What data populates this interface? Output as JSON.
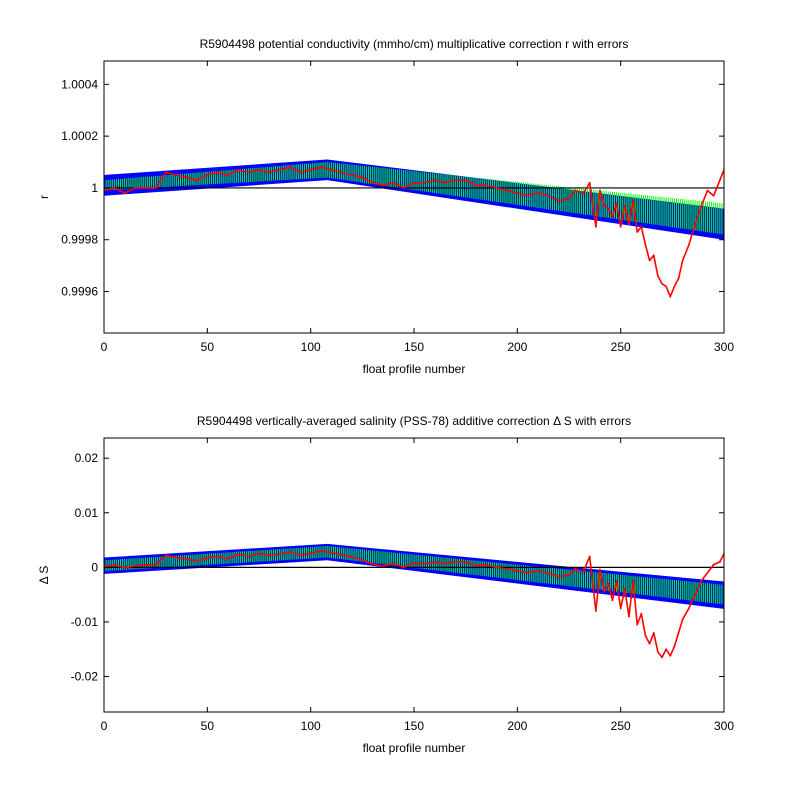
{
  "chart_data": [
    {
      "type": "area",
      "title": "R5904498 potential conductivity (mmho/cm) multiplicative correction r with errors",
      "xlabel": "float profile number",
      "ylabel": "r",
      "xlim": [
        0,
        300
      ],
      "ylim": [
        0.99944,
        1.00049
      ],
      "x_ticks": [
        0,
        50,
        100,
        150,
        200,
        250,
        300
      ],
      "x_tick_labels": [
        "0",
        "50",
        "100",
        "150",
        "200",
        "250",
        "300"
      ],
      "y_ticks": [
        0.9996,
        0.9998,
        1,
        1.0002,
        1.0004
      ],
      "y_tick_labels": [
        "0.9996",
        "0.9998",
        "1",
        "1.0002",
        "1.0004"
      ],
      "grid": false,
      "reference_line": 1,
      "colors": {
        "outer_band": "#0000ff",
        "inner_band": "#00ff00",
        "series": "#ff0000",
        "reference": "#000000"
      },
      "bands": {
        "x": [
          0,
          108,
          300
        ],
        "outer_upper": [
          1.00005,
          1.00011,
          0.99992
        ],
        "outer_lower": [
          0.99997,
          1.00003,
          0.9998
        ],
        "inner_upper": [
          1.00003,
          1.0001,
          0.99994
        ],
        "inner_lower": [
          0.99999,
          1.00004,
          0.99982
        ]
      },
      "series": [
        {
          "x": [
            0,
            5,
            10,
            15,
            20,
            25,
            30,
            35,
            40,
            45,
            50,
            55,
            60,
            65,
            70,
            75,
            80,
            85,
            90,
            95,
            100,
            105,
            110,
            115,
            120,
            125,
            130,
            135,
            140,
            145,
            150,
            155,
            160,
            165,
            170,
            175,
            180,
            185,
            190,
            195,
            200,
            205,
            210,
            215,
            220,
            225,
            228,
            232,
            235,
            238,
            240,
            242,
            244,
            246,
            248,
            250,
            252,
            254,
            256,
            258,
            260,
            262,
            264,
            266,
            268,
            270,
            272,
            274,
            276,
            278,
            280,
            283,
            286,
            289,
            292,
            295,
            298,
            300
          ],
          "values": [
            0.99999,
            1.0,
            0.99998,
            1.0,
            1.0,
            1.0,
            1.00006,
            1.00005,
            1.00004,
            1.00003,
            1.00005,
            1.00006,
            1.00005,
            1.00007,
            1.00006,
            1.00007,
            1.00006,
            1.00007,
            1.00008,
            1.00006,
            1.00007,
            1.00008,
            1.00007,
            1.00006,
            1.00005,
            1.00004,
            1.00002,
            1.00001,
            1.00002,
            1.0,
            1.00002,
            1.00002,
            1.00003,
            1.00002,
            1.00003,
            1.00003,
            1.00001,
            1.00001,
            1.0,
            0.99999,
            0.99998,
            0.99997,
            0.99998,
            0.99997,
            0.99995,
            0.99996,
            0.99999,
            0.99998,
            1.00002,
            0.99985,
            0.99999,
            0.99993,
            0.99992,
            0.99989,
            0.99994,
            0.99985,
            0.99993,
            0.99986,
            0.99995,
            0.99983,
            0.99985,
            0.99978,
            0.99972,
            0.99974,
            0.99966,
            0.99963,
            0.99962,
            0.99958,
            0.99962,
            0.99965,
            0.99972,
            0.99978,
            0.99986,
            0.99993,
            0.99999,
            0.99997,
            1.00003,
            1.00007
          ]
        }
      ]
    },
    {
      "type": "area",
      "title": "R5904498 vertically-averaged salinity (PSS-78) additive correction Δ S with errors",
      "xlabel": "float profile number",
      "ylabel": "Δ S",
      "xlim": [
        0,
        300
      ],
      "ylim": [
        -0.0265,
        0.0237
      ],
      "x_ticks": [
        0,
        50,
        100,
        150,
        200,
        250,
        300
      ],
      "x_tick_labels": [
        "0",
        "50",
        "100",
        "150",
        "200",
        "250",
        "300"
      ],
      "y_ticks": [
        -0.02,
        -0.01,
        0,
        0.01,
        0.02
      ],
      "y_tick_labels": [
        "-0.02",
        "-0.01",
        "0",
        "0.01",
        "0.02"
      ],
      "grid": false,
      "reference_line": 0,
      "colors": {
        "outer_band": "#0000ff",
        "inner_band": "#00ff00",
        "series": "#ff0000",
        "reference": "#000000"
      },
      "bands": {
        "x": [
          0,
          108,
          300
        ],
        "outer_upper": [
          0.0018,
          0.0043,
          -0.0026
        ],
        "outer_lower": [
          -0.0012,
          0.0013,
          -0.0076
        ],
        "inner_upper": [
          0.0013,
          0.0039,
          -0.0032
        ],
        "inner_lower": [
          -0.0007,
          0.0018,
          -0.0068
        ]
      },
      "series": [
        {
          "x": [
            0,
            5,
            10,
            15,
            20,
            25,
            30,
            35,
            40,
            45,
            50,
            55,
            60,
            65,
            70,
            75,
            80,
            85,
            90,
            95,
            100,
            105,
            110,
            115,
            120,
            125,
            130,
            135,
            140,
            145,
            150,
            155,
            160,
            165,
            170,
            175,
            180,
            185,
            190,
            195,
            200,
            205,
            210,
            215,
            220,
            225,
            228,
            232,
            235,
            238,
            240,
            242,
            244,
            246,
            248,
            250,
            252,
            254,
            256,
            258,
            260,
            262,
            264,
            266,
            268,
            270,
            272,
            274,
            276,
            278,
            280,
            283,
            286,
            289,
            292,
            295,
            298,
            300
          ],
          "values": [
            0.0002,
            0.0004,
            -0.0001,
            0.0003,
            0.0004,
            0.0005,
            0.0022,
            0.0018,
            0.0015,
            0.0012,
            0.0017,
            0.002,
            0.0016,
            0.0024,
            0.002,
            0.0025,
            0.0022,
            0.0024,
            0.0028,
            0.0022,
            0.0026,
            0.003,
            0.0027,
            0.0023,
            0.0019,
            0.0013,
            0.0006,
            0.0002,
            0.0007,
            0.0,
            0.0008,
            0.0006,
            0.001,
            0.0007,
            0.001,
            0.001,
            0.0003,
            0.0004,
            0.0,
            -0.0003,
            -0.0006,
            -0.001,
            -0.0006,
            -0.0011,
            -0.0017,
            -0.0014,
            -0.0003,
            -0.0008,
            0.002,
            -0.008,
            -0.0004,
            -0.0045,
            -0.003,
            -0.006,
            -0.0025,
            -0.0075,
            -0.004,
            -0.009,
            -0.0025,
            -0.0105,
            -0.0085,
            -0.0125,
            -0.014,
            -0.012,
            -0.0155,
            -0.0165,
            -0.015,
            -0.0162,
            -0.0145,
            -0.012,
            -0.0095,
            -0.0075,
            -0.005,
            -0.0025,
            -0.001,
            0.0005,
            0.001,
            0.0025
          ]
        }
      ]
    }
  ]
}
